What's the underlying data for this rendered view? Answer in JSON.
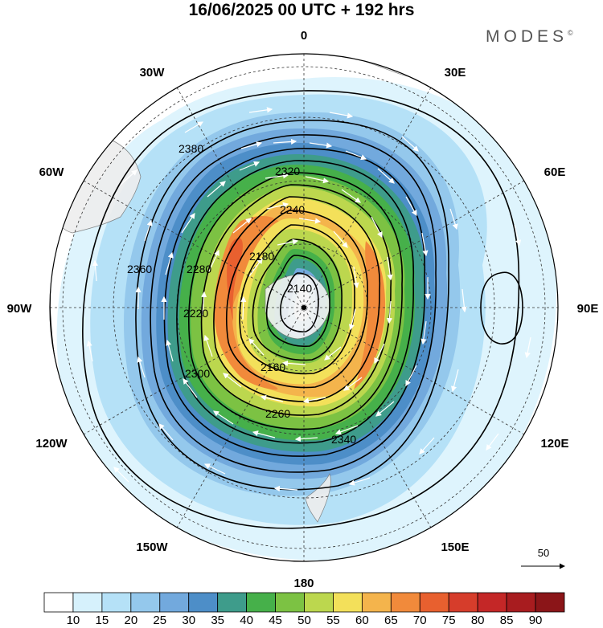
{
  "title": "16/06/2025  00 UTC  + 192 hrs",
  "brand": {
    "name": "MODES",
    "mark": "©"
  },
  "map": {
    "projection": "south polar stereographic",
    "longitude_labels": [
      "0",
      "30E",
      "60E",
      "90E",
      "120E",
      "150E",
      "180",
      "150W",
      "120W",
      "90W",
      "60W",
      "30W"
    ],
    "contour_labels": [
      "2140",
      "2160",
      "2180",
      "2220",
      "2240",
      "2260",
      "2280",
      "2300",
      "2320",
      "2340",
      "2360",
      "2380"
    ],
    "vector_reference": {
      "value": "50"
    }
  },
  "colorbar": {
    "ticks": [
      "10",
      "15",
      "20",
      "25",
      "30",
      "35",
      "40",
      "45",
      "50",
      "55",
      "60",
      "65",
      "70",
      "75",
      "80",
      "85",
      "90"
    ],
    "colors": [
      "#ffffff",
      "#d6f1fc",
      "#b5e1f7",
      "#94c8ec",
      "#72a9dd",
      "#4d8ec8",
      "#3e9c8b",
      "#46b04a",
      "#7cc243",
      "#bcd74e",
      "#f3e05a",
      "#f4b44c",
      "#f18a3b",
      "#e8602f",
      "#d63d2b",
      "#c42727",
      "#a81c1f",
      "#8b1518"
    ]
  }
}
